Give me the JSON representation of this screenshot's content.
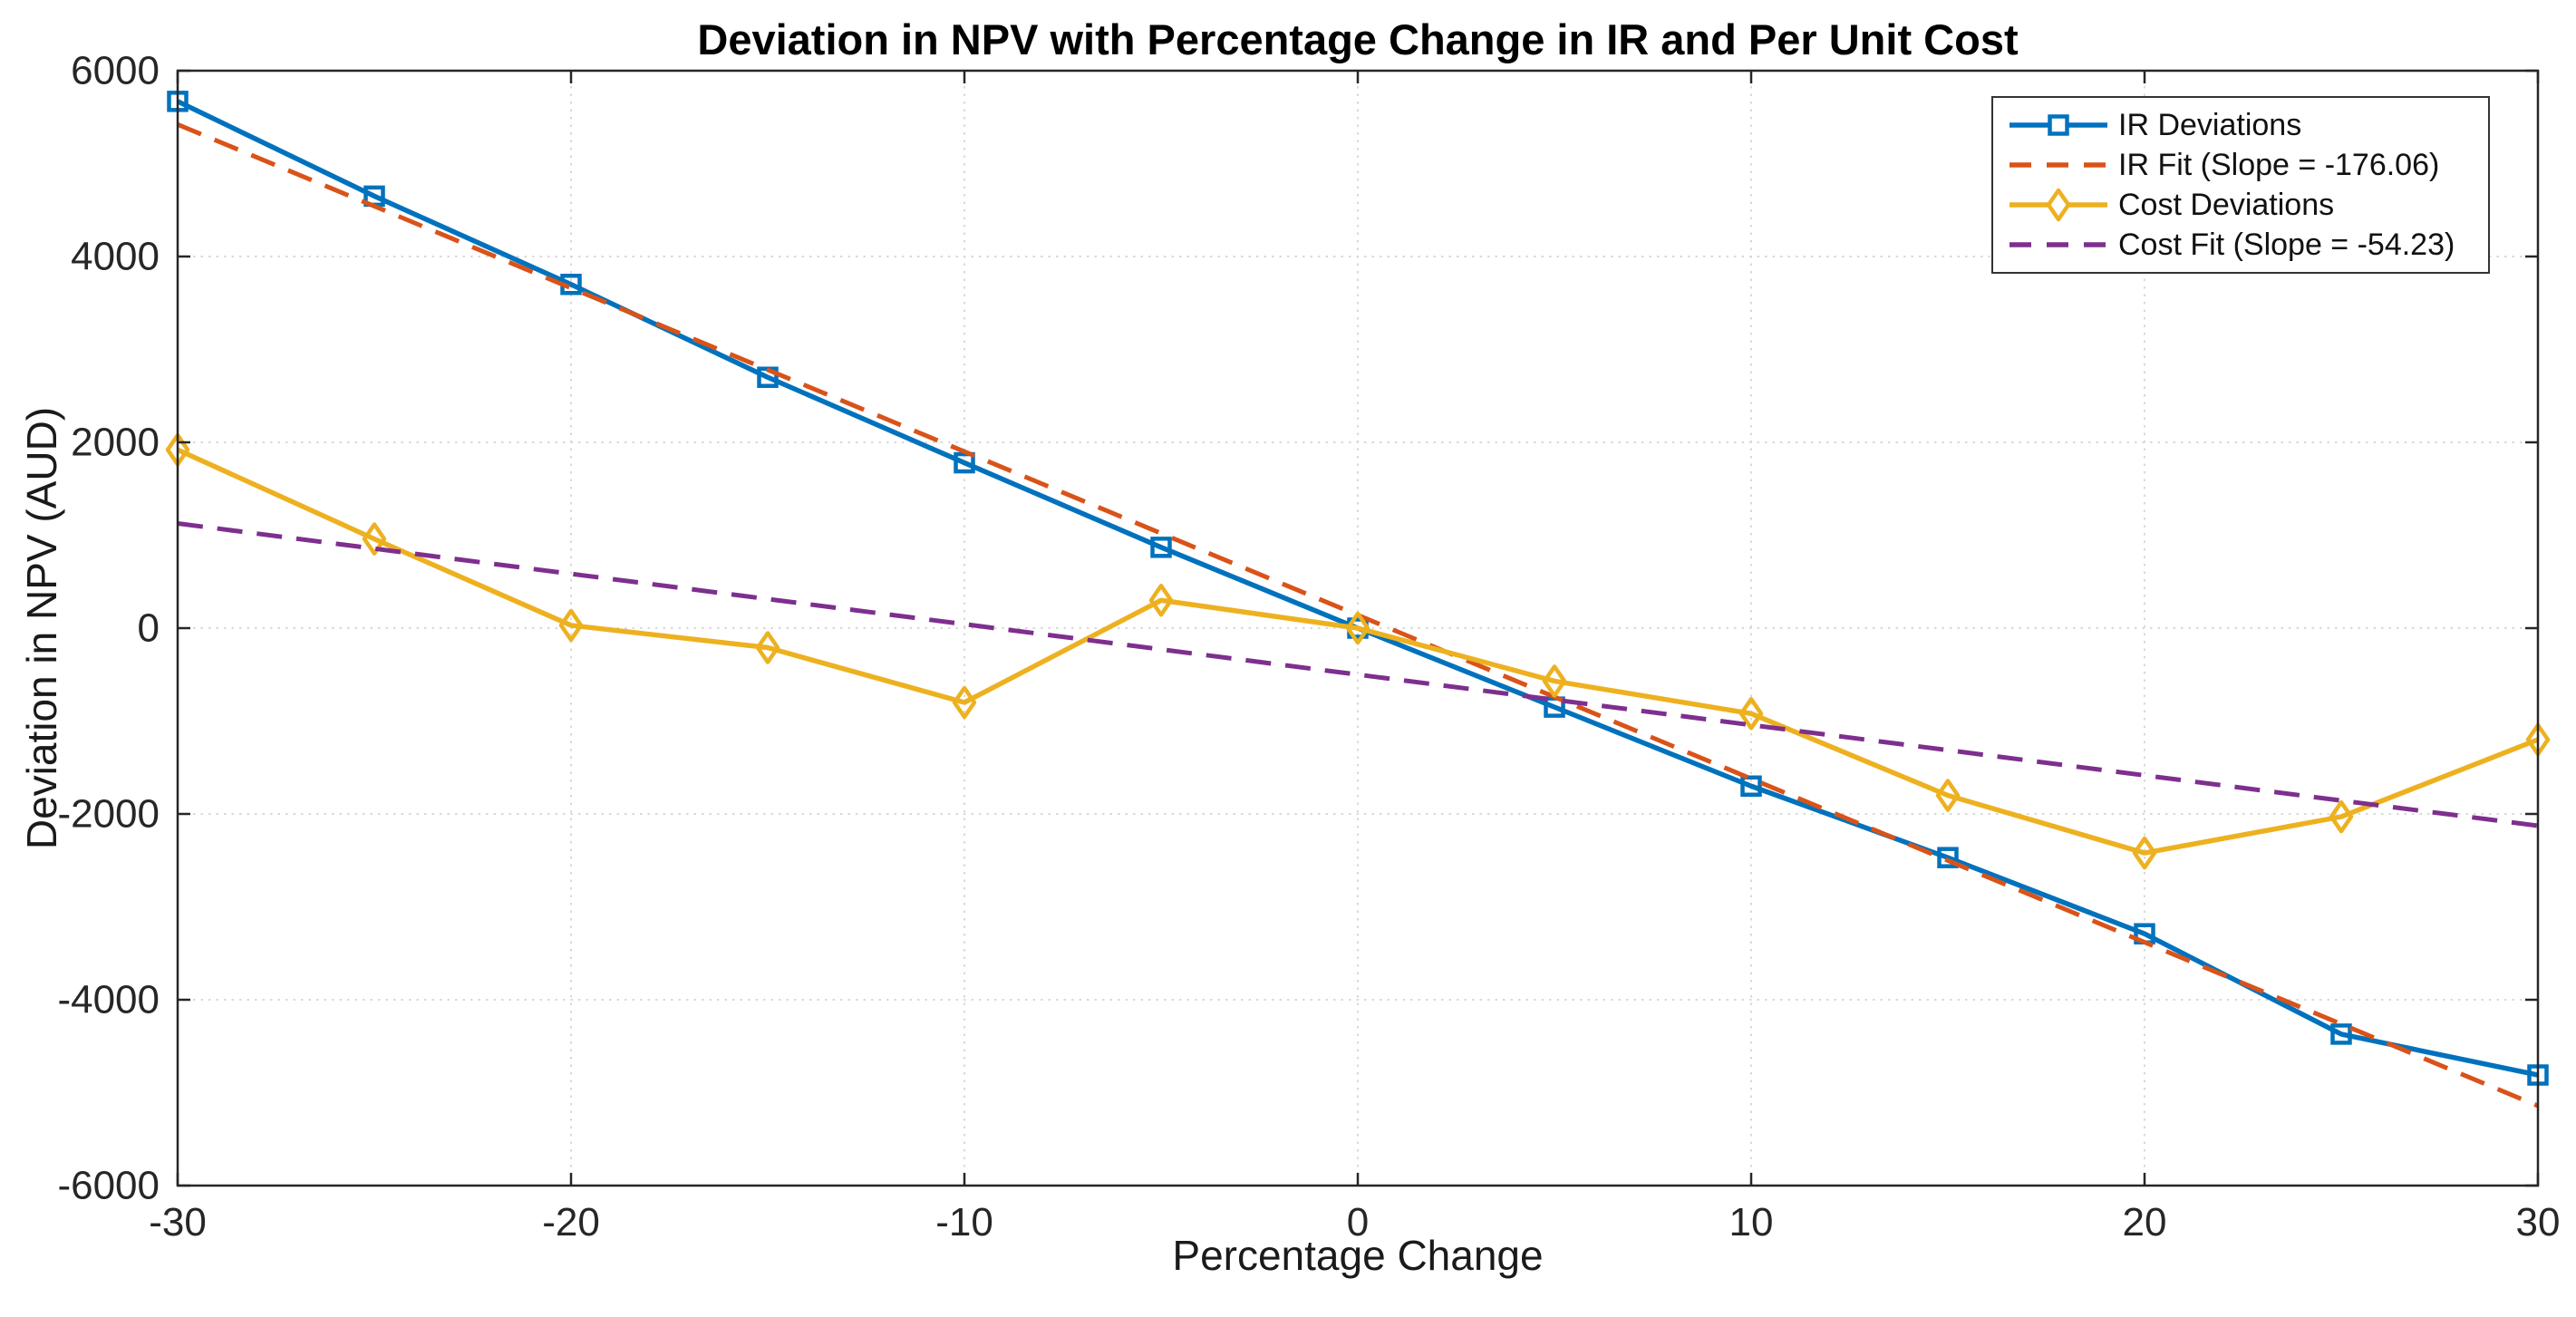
{
  "chart": {
    "title": "Deviation in NPV with Percentage Change in IR and Per Unit Cost",
    "xlabel": "Percentage Change",
    "ylabel": "Deviation in NPV (AUD)"
  },
  "chart_data": {
    "type": "line",
    "title": "Deviation in NPV with Percentage Change in IR and Per Unit Cost",
    "xlabel": "Percentage Change",
    "ylabel": "Deviation in NPV (AUD)",
    "x": [
      -30,
      -25,
      -20,
      -15,
      -10,
      -5,
      0,
      5,
      10,
      15,
      20,
      25,
      30
    ],
    "series": [
      {
        "name": "IR Deviations",
        "kind": "data",
        "values": [
          5670,
          4650,
          3700,
          2700,
          1780,
          870,
          0,
          -850,
          -1700,
          -2470,
          -3290,
          -4370,
          -4810
        ],
        "color": "#0072BD",
        "line_style": "solid",
        "marker": "square"
      },
      {
        "name": "IR Fit (Slope = -176.06)",
        "kind": "fit",
        "slope": -176.06,
        "intercept": 140,
        "color": "#D95319",
        "line_style": "dashed",
        "marker": "none"
      },
      {
        "name": "Cost Deviations",
        "kind": "data",
        "values": [
          1920,
          960,
          30,
          -210,
          -800,
          300,
          0,
          -570,
          -920,
          -1800,
          -2420,
          -2030,
          -1200
        ],
        "color": "#EDB120",
        "line_style": "solid",
        "marker": "diamond"
      },
      {
        "name": "Cost Fit (Slope = -54.23)",
        "kind": "fit",
        "slope": -54.23,
        "intercept": -500,
        "color": "#7E2F8E",
        "line_style": "dashed",
        "marker": "none"
      }
    ],
    "x_ticks": [
      -30,
      -20,
      -10,
      0,
      10,
      20,
      30
    ],
    "y_ticks": [
      -6000,
      -4000,
      -2000,
      0,
      2000,
      4000,
      6000
    ],
    "xlim": [
      -30,
      30
    ],
    "ylim": [
      -6000,
      6000
    ],
    "grid": true,
    "legend_position": "top-right"
  },
  "style": {
    "axis_color": "#262626",
    "tick_label_color": "#262626",
    "grid_color": "#d9d9d9",
    "background": "#ffffff"
  }
}
